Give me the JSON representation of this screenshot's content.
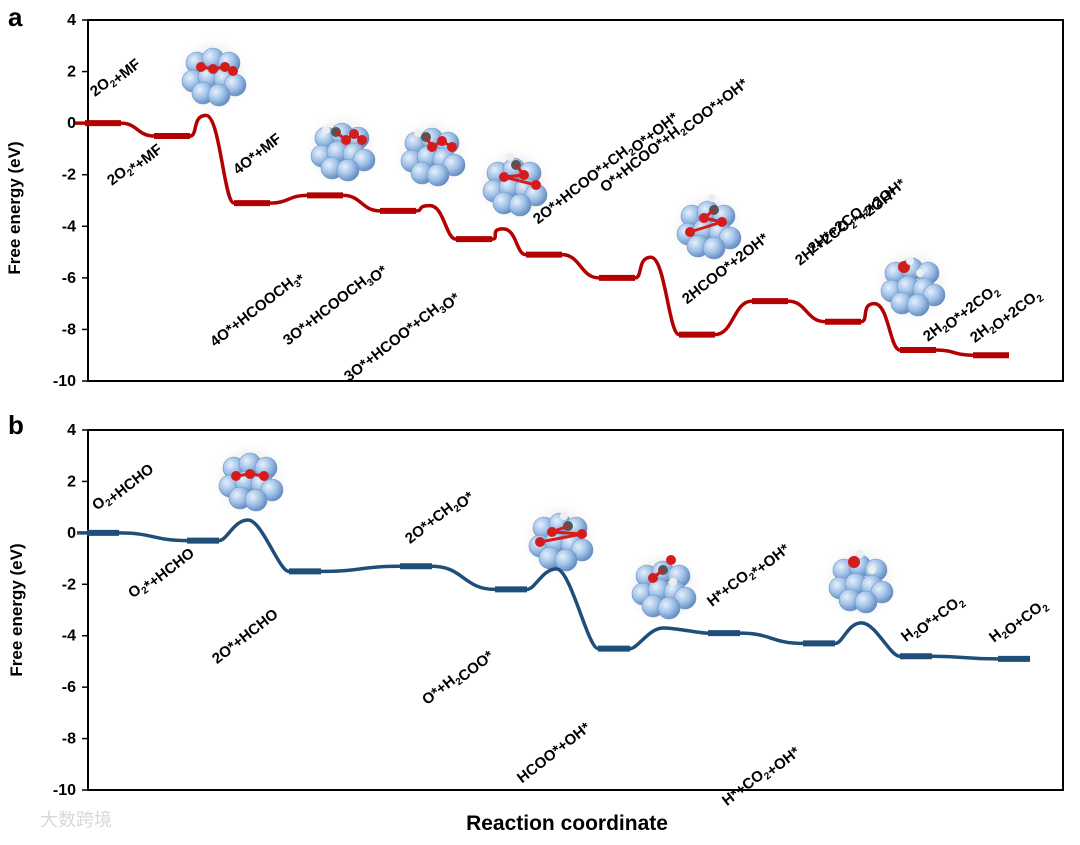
{
  "xlabel": "Reaction coordinate",
  "watermark": "大数跨境",
  "colors": {
    "panel_a": "#b30000",
    "panel_a_glow": "#ff8a8a",
    "panel_b": "#1f4e79",
    "atom": "#9dbfe6",
    "oxygen": "#d41c1c",
    "carbon": "#555555",
    "hydrogen": "#eeeeee"
  },
  "chart_data": [
    {
      "type": "line",
      "panel": "a",
      "ylabel": "Free energy (eV)",
      "ylim": [
        -10,
        4
      ],
      "yticks": [
        4,
        2,
        0,
        -2,
        -4,
        -6,
        -8,
        -10
      ],
      "grid": false,
      "steps": [
        {
          "x": 0,
          "y": 0.0,
          "label": "2O<sub>2</sub>+MF",
          "label_pos": "above"
        },
        {
          "x": 1,
          "y": -0.5,
          "label": "2O<sub>2</sub>*+MF",
          "label_pos": "below"
        },
        {
          "x": 2,
          "y": -3.1,
          "label": "4O*+MF",
          "label_pos": "above"
        },
        {
          "x": 3,
          "y": -2.8,
          "label": "4O*+HCOOCH<sub>3</sub>*",
          "label_pos": "below"
        },
        {
          "x": 4,
          "y": -3.4,
          "label": "3O*+HCOOCH<sub>3</sub>O*",
          "label_pos": "below"
        },
        {
          "x": 5,
          "y": -4.5,
          "label": "3O*+HCOO*+CH<sub>3</sub>O*",
          "label_pos": "below"
        },
        {
          "x": 6,
          "y": -5.1,
          "label": "2O*+HCOO*+CH<sub>2</sub>O*+OH*",
          "label_pos": "above"
        },
        {
          "x": 7,
          "y": -6.0,
          "label": "O*+HCOO*+H<sub>2</sub>COO*+OH*",
          "label_pos": "above"
        },
        {
          "x": 8,
          "y": -8.2,
          "label": "2HCOO*+2OH*",
          "label_pos": "above"
        },
        {
          "x": 9,
          "y": -6.9,
          "label": "2H*+2CO<sub>2</sub>*+2OH*",
          "label_pos": "above"
        },
        {
          "x": 10,
          "y": -7.7,
          "label": "2H*+2CO<sub>2</sub>+2OH*",
          "label_pos": "above"
        },
        {
          "x": 11,
          "y": -8.8,
          "label": "2H<sub>2</sub>O*+2CO<sub>2</sub>",
          "label_pos": "above"
        },
        {
          "x": 12,
          "y": -9.0,
          "label": "2H<sub>2</sub>O+2CO<sub>2</sub>",
          "label_pos": "above"
        }
      ],
      "transition_peaks": [
        {
          "between": [
            1,
            2
          ],
          "y": 0.3
        },
        {
          "between": [
            4,
            5
          ],
          "y": -3.2
        },
        {
          "between": [
            5,
            6
          ],
          "y": -4.1
        },
        {
          "between": [
            7,
            8
          ],
          "y": -5.2
        },
        {
          "between": [
            10,
            11
          ],
          "y": -7.0
        }
      ]
    },
    {
      "type": "line",
      "panel": "b",
      "ylabel": "Free energy (eV)",
      "ylim": [
        -10,
        4
      ],
      "yticks": [
        4,
        2,
        0,
        -2,
        -4,
        -6,
        -8,
        -10
      ],
      "grid": false,
      "steps": [
        {
          "x": 0,
          "y": 0.0,
          "label": "O<sub>2</sub>+HCHO",
          "label_pos": "above"
        },
        {
          "x": 1,
          "y": -0.3,
          "label": "O<sub>2</sub>*+HCHO",
          "label_pos": "below"
        },
        {
          "x": 2,
          "y": -1.5,
          "label": "2O*+HCHO",
          "label_pos": "below"
        },
        {
          "x": 3,
          "y": -1.3,
          "label": "2O*+CH<sub>2</sub>O*",
          "label_pos": "above"
        },
        {
          "x": 4,
          "y": -2.2,
          "label": "O*+H<sub>2</sub>COO*",
          "label_pos": "below"
        },
        {
          "x": 5,
          "y": -4.5,
          "label": "HCOO*+OH*",
          "label_pos": "below"
        },
        {
          "x": 6,
          "y": -3.9,
          "label": "H*+CO<sub>2</sub>*+OH*",
          "label_pos": "above"
        },
        {
          "x": 7,
          "y": -4.3,
          "label": "H*+CO<sub>2</sub>+OH*",
          "label_pos": "below"
        },
        {
          "x": 8,
          "y": -4.8,
          "label": "H<sub>2</sub>O*+CO<sub>2</sub>",
          "label_pos": "above"
        },
        {
          "x": 9,
          "y": -4.9,
          "label": "H<sub>2</sub>O+CO<sub>2</sub>",
          "label_pos": "above"
        }
      ],
      "transition_peaks": [
        {
          "between": [
            1,
            2
          ],
          "y": 0.5
        },
        {
          "between": [
            4,
            5
          ],
          "y": -1.4
        },
        {
          "between": [
            5,
            6
          ],
          "y": -3.7
        },
        {
          "between": [
            7,
            8
          ],
          "y": -3.5
        }
      ]
    }
  ]
}
